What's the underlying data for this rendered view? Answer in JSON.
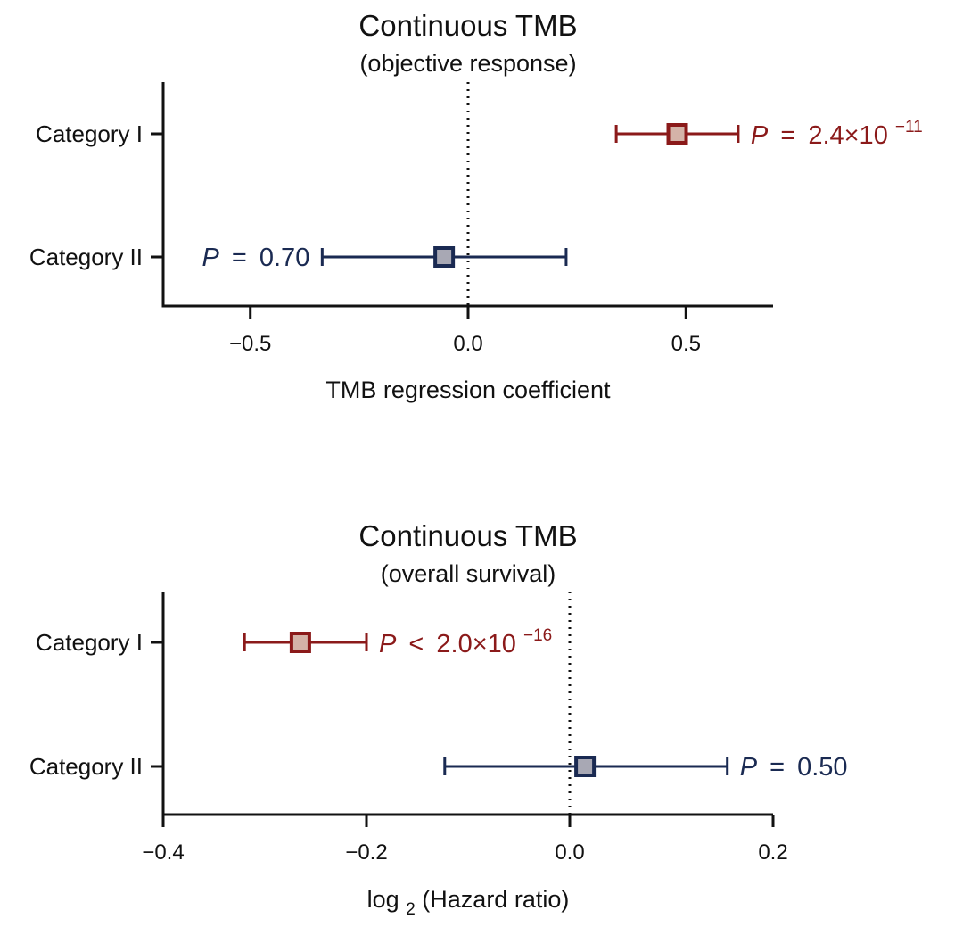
{
  "chart_data": [
    {
      "type": "forest",
      "title": "Continuous TMB",
      "subtitle": "(objective response)",
      "xlabel": "TMB regression coefficient",
      "xlim": [
        -0.7,
        0.7
      ],
      "xticks": [
        -0.5,
        0.0,
        0.5
      ],
      "xtick_labels": [
        "−0.5",
        "0.0",
        "0.5"
      ],
      "reference_line": 0,
      "series": [
        {
          "name": "Category I",
          "estimate": 0.48,
          "ci_low": 0.34,
          "ci_high": 0.62,
          "p_symbol": "P",
          "p_relation": "=",
          "p_value": "2.4×10",
          "p_exponent": "−11",
          "p_side": "right",
          "color": "#8b1a1a",
          "marker_fill": "#d4b3a8"
        },
        {
          "name": "Category II",
          "estimate": -0.055,
          "ci_low": -0.335,
          "ci_high": 0.225,
          "p_symbol": "P",
          "p_relation": "=",
          "p_value": "0.70",
          "p_exponent": "",
          "p_side": "left",
          "color": "#1a2a52",
          "marker_fill": "#a8a8b4"
        }
      ]
    },
    {
      "type": "forest",
      "title": "Continuous TMB",
      "subtitle": "(overall survival)",
      "xlabel": "log",
      "xlabel_sub": "2",
      "xlabel_rest": "(Hazard ratio)",
      "xlim": [
        -0.4,
        0.2
      ],
      "xticks": [
        -0.4,
        -0.2,
        0.0,
        0.2
      ],
      "xtick_labels": [
        "−0.4",
        "−0.2",
        "0.0",
        "0.2"
      ],
      "reference_line": 0,
      "series": [
        {
          "name": "Category I",
          "estimate": -0.265,
          "ci_low": -0.32,
          "ci_high": -0.2,
          "p_symbol": "P",
          "p_relation": "<",
          "p_value": "2.0×10",
          "p_exponent": "−16",
          "p_side": "right",
          "color": "#8b1a1a",
          "marker_fill": "#d4b3a8"
        },
        {
          "name": "Category II",
          "estimate": 0.015,
          "ci_low": -0.123,
          "ci_high": 0.155,
          "p_symbol": "P",
          "p_relation": "=",
          "p_value": "0.50",
          "p_exponent": "",
          "p_side": "right",
          "color": "#1a2a52",
          "marker_fill": "#a8a8b4"
        }
      ]
    }
  ]
}
